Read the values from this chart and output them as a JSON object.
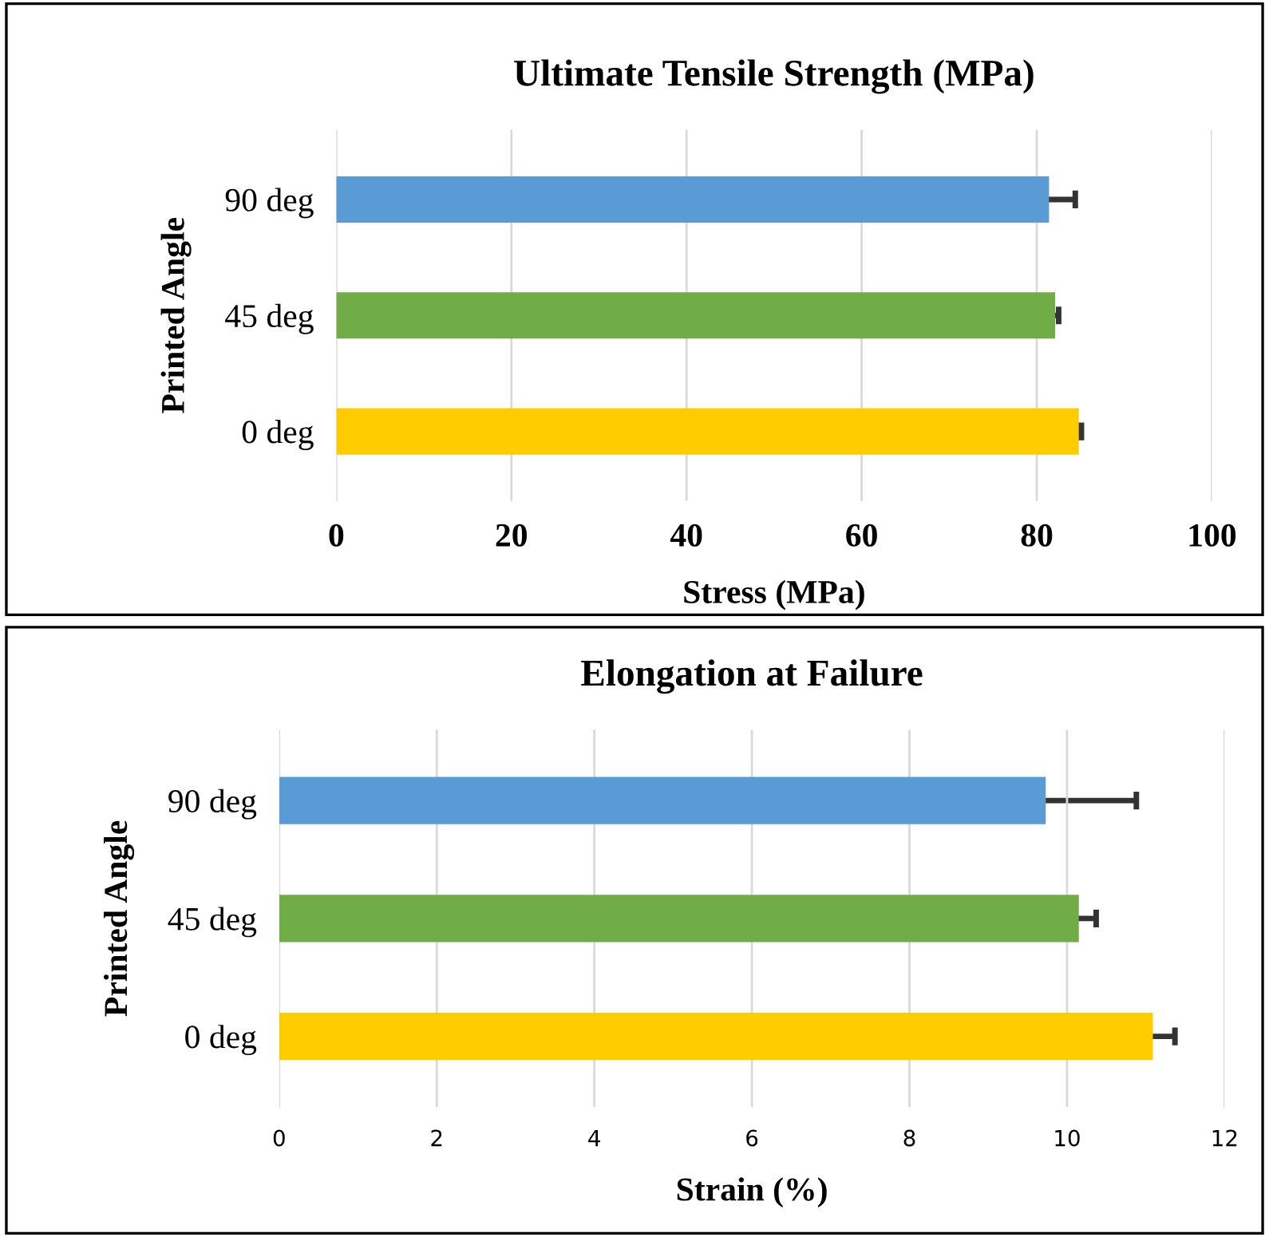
{
  "chart_data": [
    {
      "type": "bar",
      "orientation": "horizontal",
      "title": "Ultimate Tensile Strength (MPa)",
      "xlabel": "Stress (MPa)",
      "ylabel": "Printed Angle",
      "categories": [
        "90 deg",
        "45 deg",
        "0 deg"
      ],
      "values": [
        81.4,
        82.1,
        84.8
      ],
      "errors": [
        3.0,
        0.4,
        0.3
      ],
      "colors": [
        "#5b9bd5",
        "#70ad47",
        "#ffcc00"
      ],
      "xlim": [
        0,
        100
      ],
      "xticks": [
        0,
        20,
        40,
        60,
        80,
        100
      ],
      "grid": "x"
    },
    {
      "type": "bar",
      "orientation": "horizontal",
      "title": "Elongation at Failure",
      "xlabel": "Strain (%)",
      "ylabel": "Printed Angle",
      "categories": [
        "90 deg",
        "45 deg",
        "0 deg"
      ],
      "values": [
        9.73,
        10.15,
        11.09
      ],
      "errors": [
        1.15,
        0.22,
        0.28
      ],
      "colors": [
        "#5b9bd5",
        "#70ad47",
        "#ffcc00"
      ],
      "xlim": [
        0,
        12
      ],
      "xticks": [
        0,
        2,
        4,
        6,
        8,
        10,
        12
      ],
      "grid": "x"
    }
  ]
}
